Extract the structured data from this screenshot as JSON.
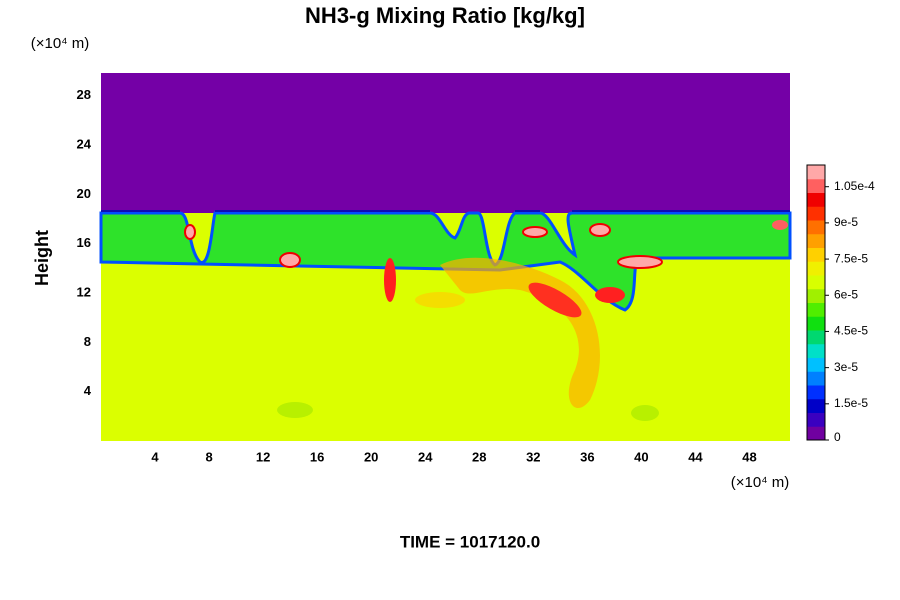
{
  "chart_data": {
    "type": "heatmap",
    "title": "NH3-g Mixing Ratio [kg/kg]",
    "y_label": "Height",
    "y_unit": "(×10⁴ m)",
    "x_unit": "(×10⁴ m)",
    "footer": "TIME = 1017120.0",
    "xlim": [
      0,
      51
    ],
    "xticks": [
      4,
      8,
      12,
      16,
      20,
      24,
      28,
      32,
      36,
      40,
      44,
      48
    ],
    "ylim": [
      0,
      30
    ],
    "yticks": [
      4,
      8,
      12,
      16,
      20,
      24,
      28
    ],
    "clim": [
      0,
      0.000114
    ],
    "cticks": [
      0,
      {
        "value": 1.5e-05,
        "label": "1.5e-5"
      },
      {
        "value": 3e-05,
        "label": "3e-5"
      },
      {
        "value": 4.5e-05,
        "label": "4.5e-5"
      },
      {
        "value": 6e-05,
        "label": "6e-5"
      },
      {
        "value": 7.5e-05,
        "label": "7.5e-5"
      },
      {
        "value": 9e-05,
        "label": "9e-5"
      },
      {
        "value": 0.000105,
        "label": "1.05e-4"
      }
    ],
    "colormap": [
      "#7000a0",
      "#3a00c0",
      "#0000c8",
      "#0030ff",
      "#0080ff",
      "#00c0ff",
      "#00e0c8",
      "#00d870",
      "#10e010",
      "#50ee00",
      "#a0f000",
      "#d8ff00",
      "#f0f000",
      "#ffd000",
      "#ffa000",
      "#ff7000",
      "#ff3000",
      "#f00000",
      "#ff6060",
      "#ffa8a8"
    ]
  }
}
